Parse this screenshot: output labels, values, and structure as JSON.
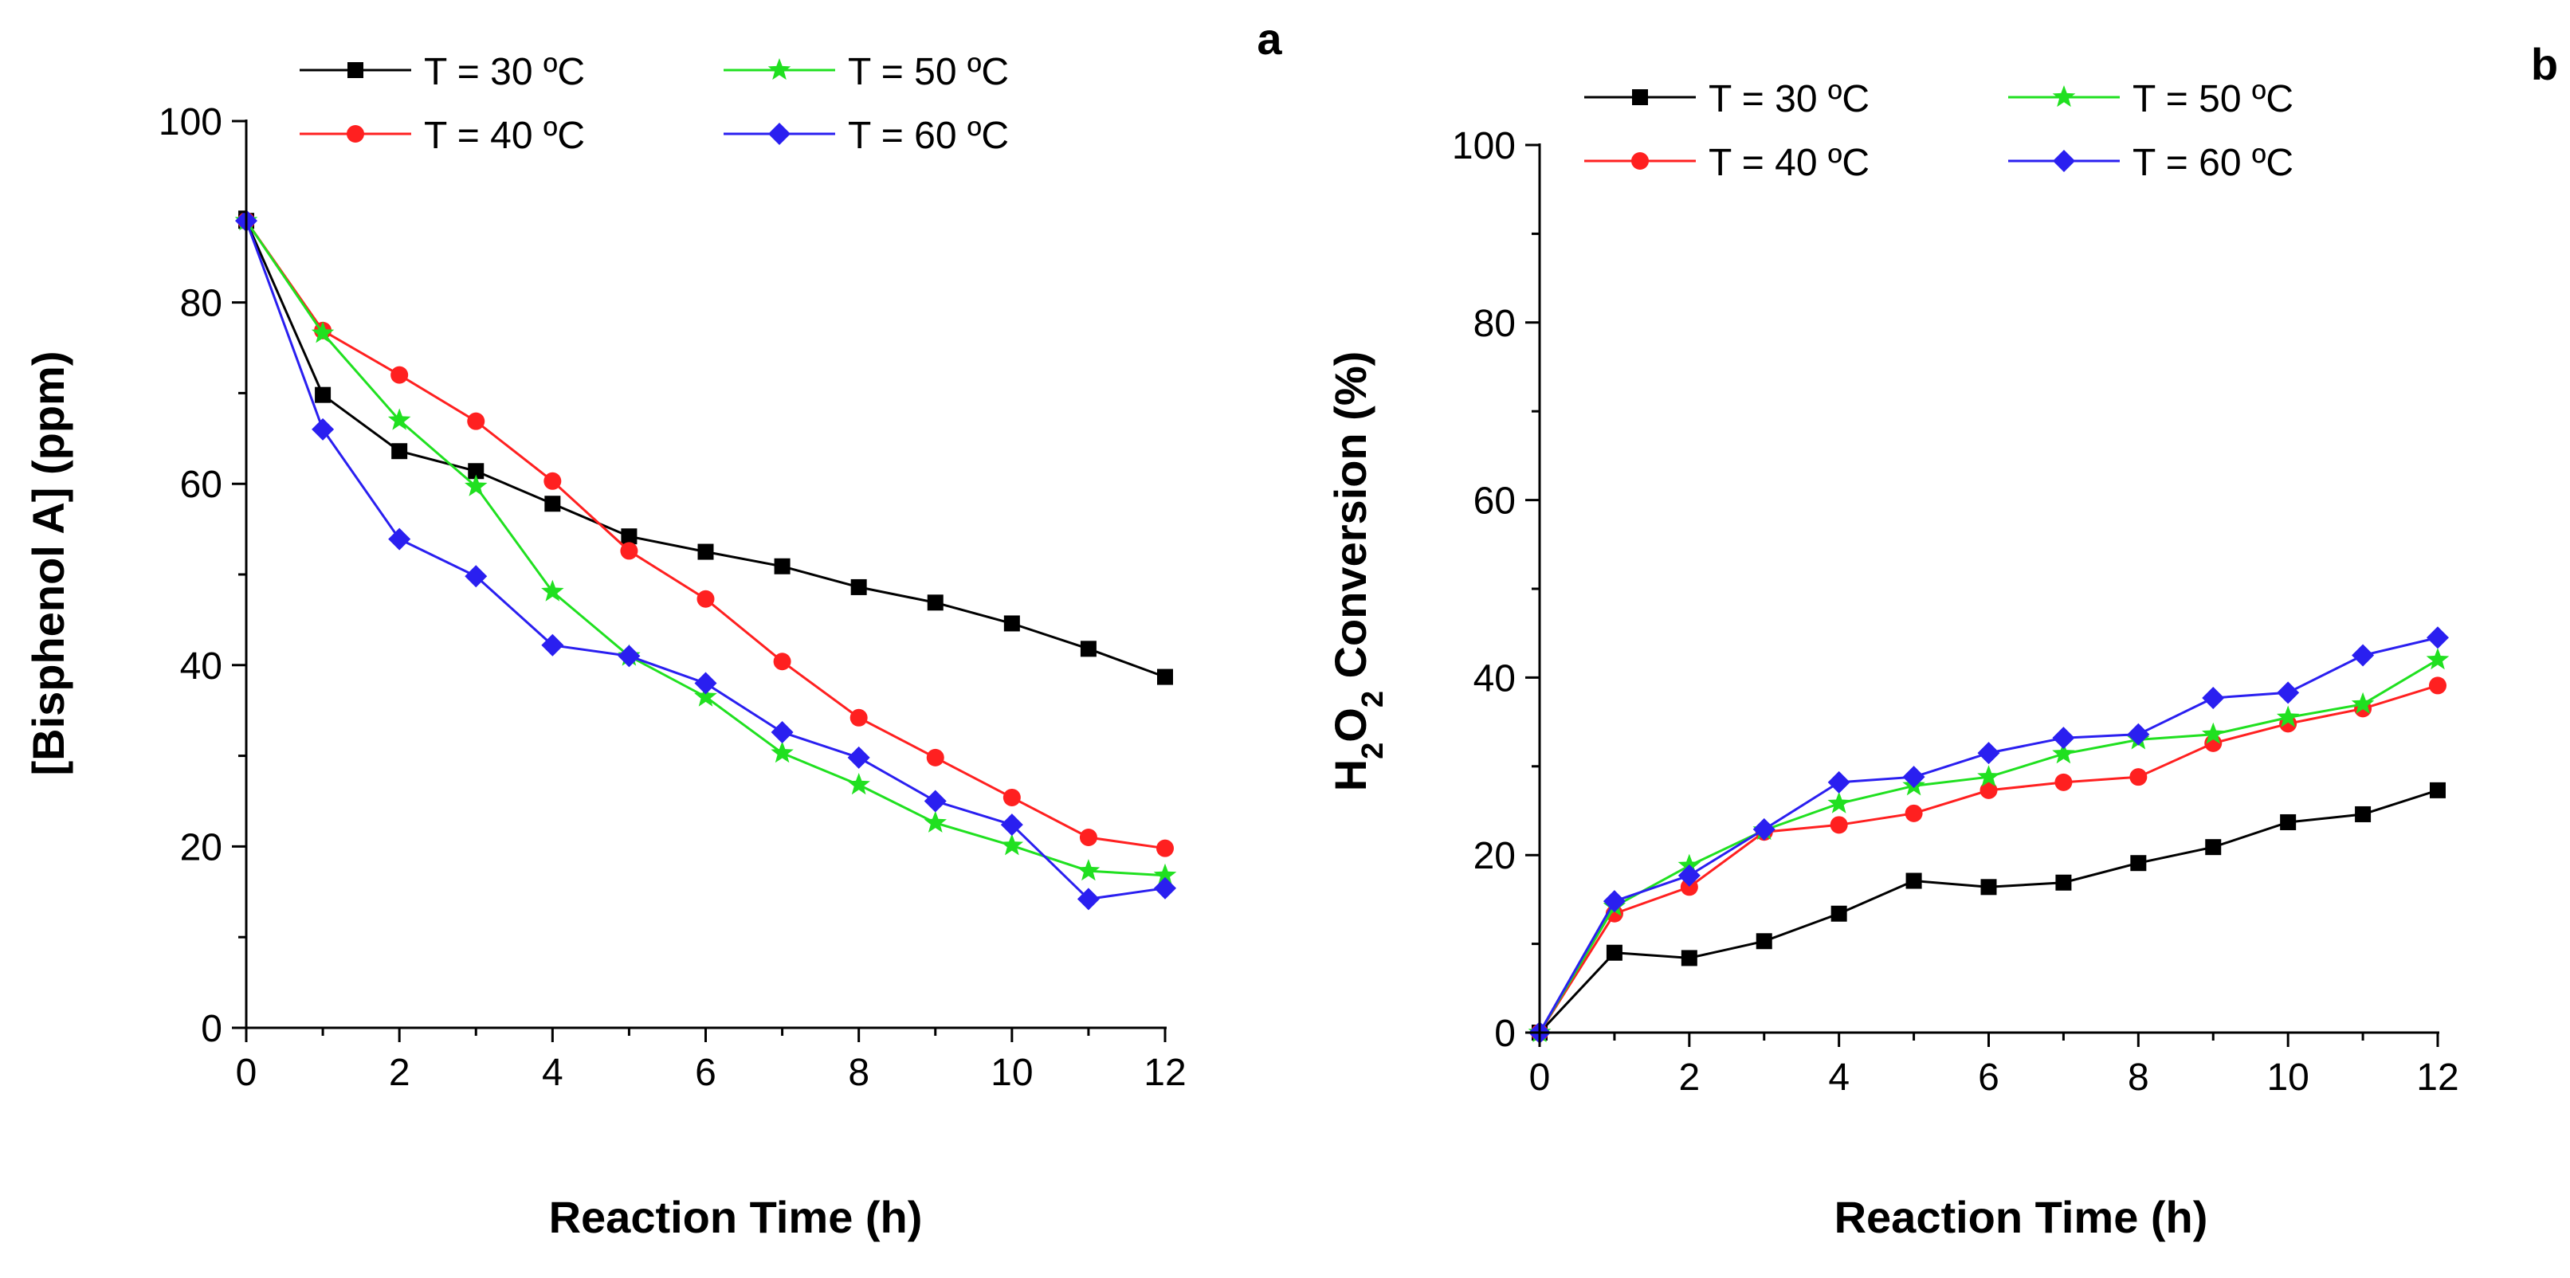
{
  "chart_data": [
    {
      "panel": "a",
      "type": "line",
      "xlabel": "Reaction Time (h)",
      "ylabel": "[Bisphenol A] (ppm)",
      "xlim": [
        0,
        12
      ],
      "ylim": [
        0,
        100
      ],
      "xticks": [
        "0",
        "2",
        "4",
        "6",
        "8",
        "10",
        "12"
      ],
      "yticks": [
        "0",
        "20",
        "40",
        "60",
        "80",
        "100"
      ],
      "legend_position": "top",
      "x": [
        0,
        1,
        2,
        3,
        4,
        5,
        6,
        7,
        8,
        9,
        10,
        11,
        12
      ],
      "series": [
        {
          "name": "T = 30 ºC",
          "color": "#000000",
          "marker": "square",
          "values": [
            89,
            69.8,
            63.6,
            61.4,
            57.8,
            54.2,
            52.5,
            50.9,
            48.6,
            46.9,
            44.6,
            41.8,
            38.7
          ]
        },
        {
          "name": "T = 40 ºC",
          "color": "#ff2020",
          "marker": "circle",
          "values": [
            89,
            76.9,
            72,
            66.9,
            60.3,
            52.6,
            47.3,
            40.4,
            34.2,
            29.8,
            25.4,
            21,
            19.8
          ]
        },
        {
          "name": "T = 50 ºC",
          "color": "#20e020",
          "marker": "star",
          "values": [
            89,
            76.6,
            67,
            59.7,
            48.1,
            41,
            36.5,
            30.3,
            26.8,
            22.6,
            20.1,
            17.3,
            16.8
          ]
        },
        {
          "name": "T = 60 ºC",
          "color": "#2a1ff0",
          "marker": "diamond",
          "values": [
            89,
            66,
            53.9,
            49.8,
            42.2,
            41,
            38,
            32.6,
            29.8,
            25,
            22.4,
            14.2,
            15.4
          ]
        }
      ]
    },
    {
      "panel": "b",
      "type": "line",
      "xlabel": "Reaction Time (h)",
      "ylabel_parts": {
        "h": "H",
        "sub1": "2",
        "o": "O",
        "sub2": "2",
        "rest": " Conversion (%)"
      },
      "xlim": [
        0,
        12
      ],
      "ylim": [
        0,
        100
      ],
      "xticks": [
        "0",
        "2",
        "4",
        "6",
        "8",
        "10",
        "12"
      ],
      "yticks": [
        "0",
        "20",
        "40",
        "60",
        "80",
        "100"
      ],
      "legend_position": "top",
      "x": [
        0,
        1,
        2,
        3,
        4,
        5,
        6,
        7,
        8,
        9,
        10,
        11,
        12
      ],
      "series": [
        {
          "name": "T = 30 ºC",
          "color": "#000000",
          "marker": "square",
          "values": [
            0,
            9,
            8.4,
            10.3,
            13.4,
            17.1,
            16.4,
            16.9,
            19.1,
            20.9,
            23.7,
            24.6,
            27.3
          ]
        },
        {
          "name": "T = 40 ºC",
          "color": "#ff2020",
          "marker": "circle",
          "values": [
            0,
            13.4,
            16.4,
            22.6,
            23.4,
            24.7,
            27.3,
            28.2,
            28.8,
            32.6,
            34.8,
            36.5,
            39.1
          ]
        },
        {
          "name": "T = 50 ºC",
          "color": "#20e020",
          "marker": "star",
          "values": [
            0,
            14.2,
            18.8,
            22.8,
            25.8,
            27.8,
            28.8,
            31.4,
            33,
            33.6,
            35.5,
            37,
            42
          ]
        },
        {
          "name": "T = 60 ºC",
          "color": "#2a1ff0",
          "marker": "diamond",
          "values": [
            0,
            14.8,
            17.7,
            22.9,
            28.2,
            28.8,
            31.5,
            33.2,
            33.6,
            37.7,
            38.3,
            42.5,
            44.5
          ]
        }
      ]
    }
  ]
}
